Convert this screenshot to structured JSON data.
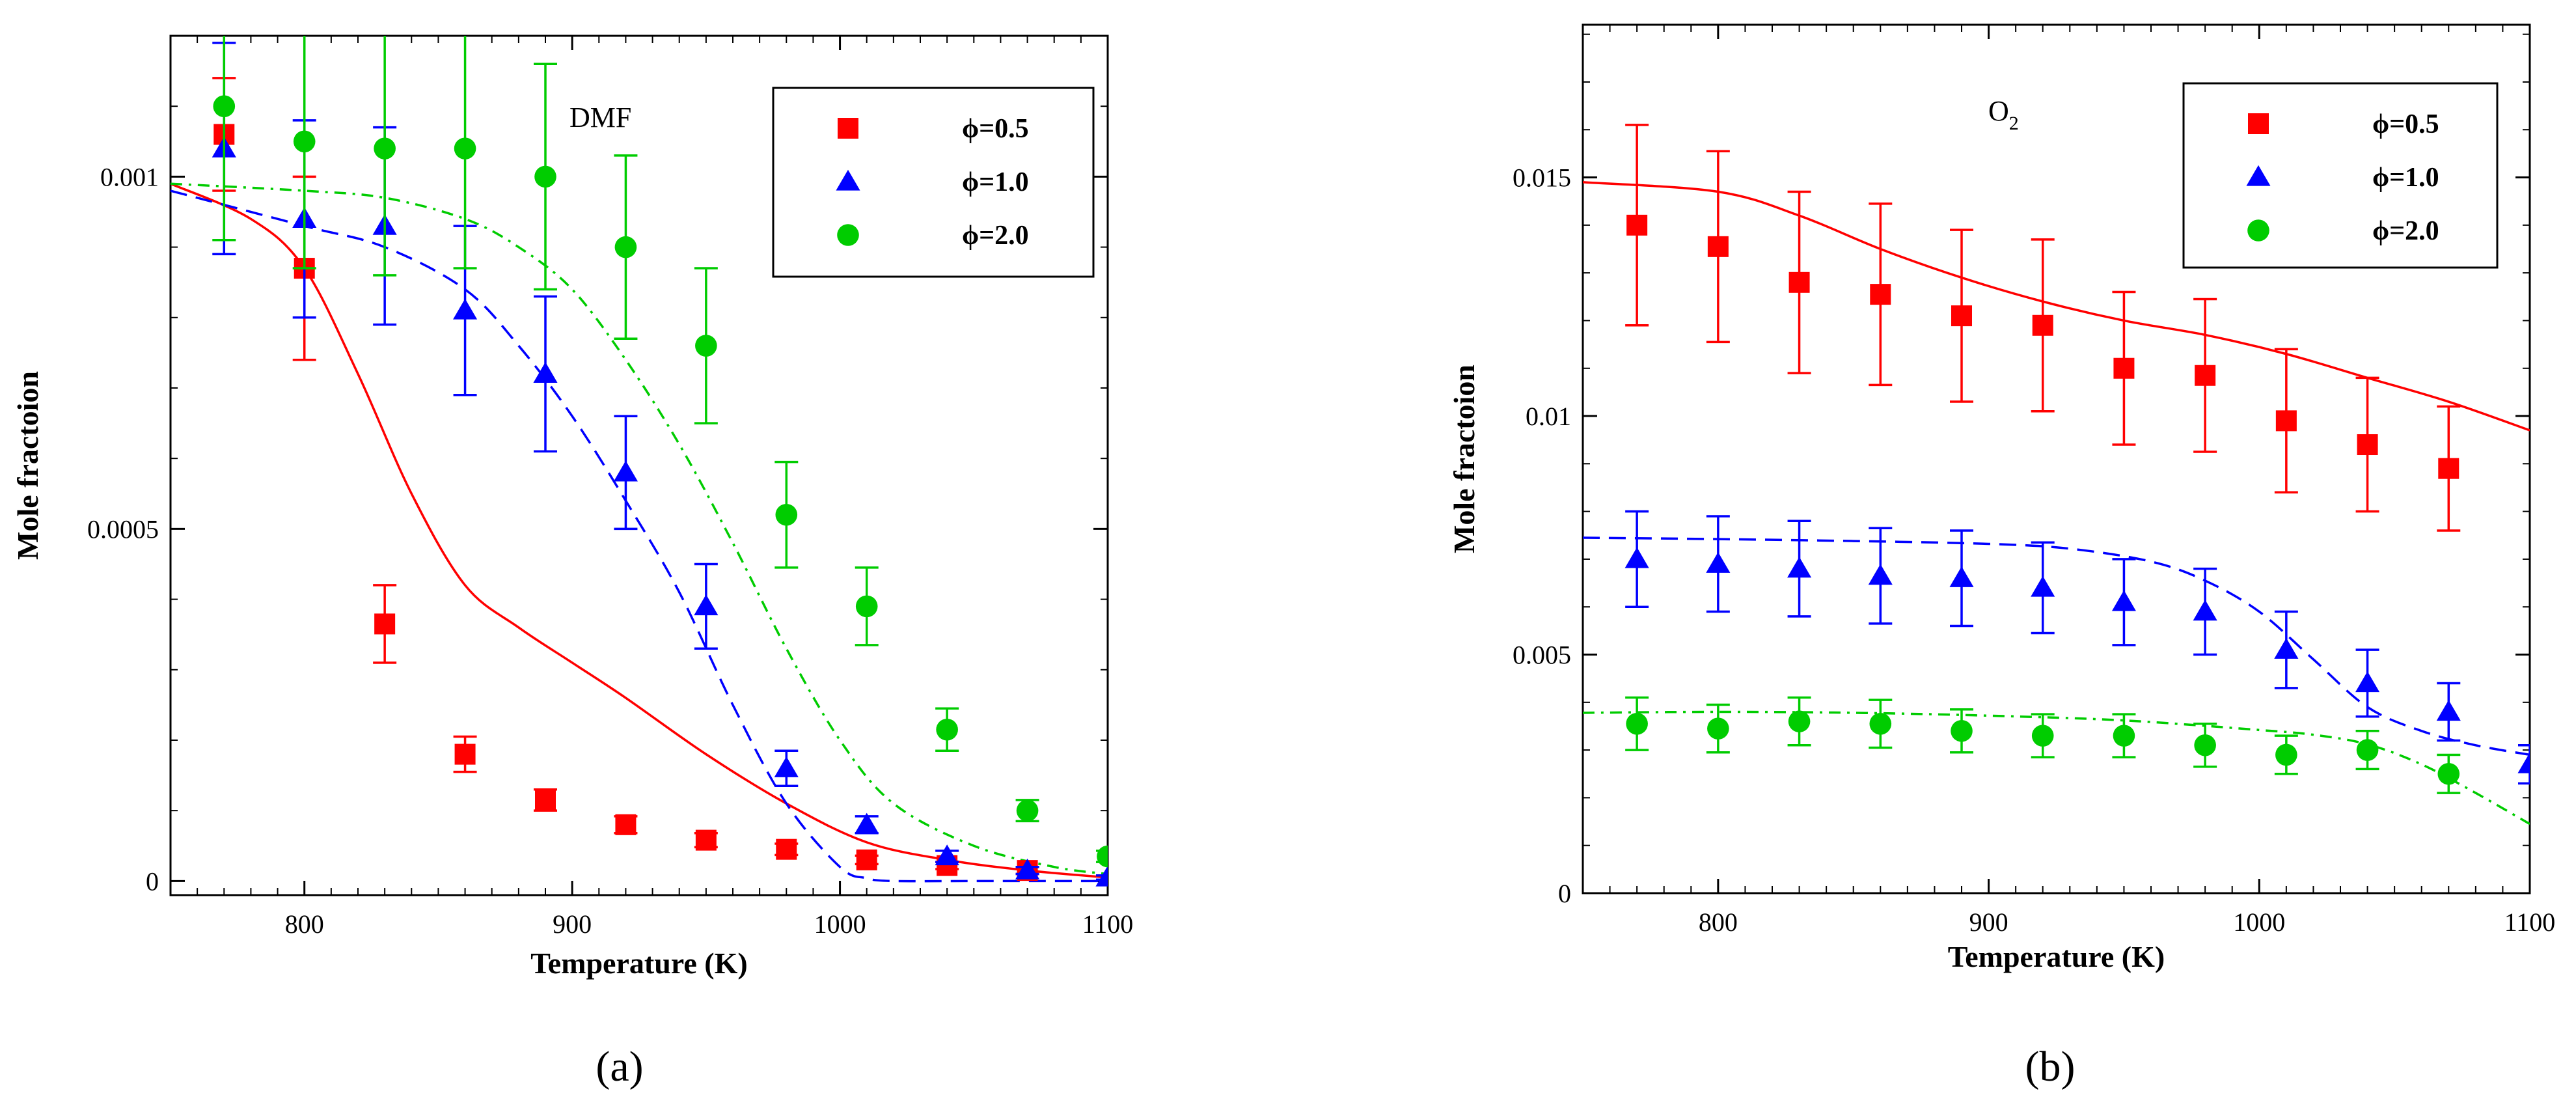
{
  "chart_data": [
    {
      "type": "scatter",
      "panel_label": "(a)",
      "annotation": "DMF",
      "xlabel": "Temperature (K)",
      "ylabel": "Mole fractoion",
      "xlim": [
        750,
        1100
      ],
      "ylim": [
        -2e-05,
        0.0012
      ],
      "xticks": [
        800,
        900,
        1000,
        1100
      ],
      "xtick_labels": [
        "800",
        "900",
        "1000",
        "1100"
      ],
      "yticks": [
        0,
        0.0005,
        0.001
      ],
      "ytick_labels": [
        "0",
        "0.0005",
        "0.001"
      ],
      "grid": false,
      "legend_position": "top-right",
      "series": [
        {
          "name": "ϕ=0.5",
          "color": "#ff0000",
          "marker": "square",
          "line_style": "solid",
          "x": [
            770,
            800,
            830,
            860,
            890,
            920,
            950,
            980,
            1010,
            1040,
            1070
          ],
          "y": [
            0.00106,
            0.00087,
            0.000365,
            0.00018,
            0.000115,
            8e-05,
            5.8e-05,
            4.5e-05,
            3e-05,
            2.2e-05,
            1.5e-05
          ],
          "err": [
            8e-05,
            0.00013,
            5.5e-05,
            2.5e-05,
            1.5e-05,
            1.2e-05,
            1e-05,
            8e-06,
            6e-06,
            5e-06,
            5e-06
          ],
          "model_x": [
            750,
            780,
            800,
            820,
            840,
            860,
            880,
            900,
            920,
            950,
            980,
            1010,
            1040,
            1070,
            1100
          ],
          "model_y": [
            0.00099,
            0.00094,
            0.00087,
            0.00072,
            0.00055,
            0.00042,
            0.00036,
            0.00031,
            0.00026,
            0.00018,
            0.00011,
            5.5e-05,
            3e-05,
            1.5e-05,
            5e-06
          ]
        },
        {
          "name": "ϕ=1.0",
          "color": "#0000ff",
          "marker": "triangle",
          "line_style": "dashed",
          "x": [
            770,
            800,
            830,
            860,
            890,
            920,
            950,
            980,
            1010,
            1040,
            1070,
            1100
          ],
          "y": [
            0.00104,
            0.00094,
            0.00093,
            0.00081,
            0.00072,
            0.00058,
            0.00039,
            0.00016,
            8e-05,
            3.5e-05,
            1.5e-05,
            5e-06
          ],
          "err": [
            0.00015,
            0.00014,
            0.00014,
            0.00012,
            0.00011,
            8e-05,
            6e-05,
            2.5e-05,
            1.2e-05,
            8e-06,
            5e-06,
            3e-06
          ],
          "model_x": [
            750,
            800,
            830,
            860,
            880,
            900,
            920,
            940,
            960,
            980,
            1000,
            1010,
            1020,
            1050,
            1100
          ],
          "model_y": [
            0.00098,
            0.00093,
            0.0009,
            0.00084,
            0.00076,
            0.00066,
            0.00054,
            0.00041,
            0.00025,
            0.00011,
            2e-05,
            4e-06,
            0.0,
            0.0,
            0.0
          ]
        },
        {
          "name": "ϕ=2.0",
          "color": "#00cc00",
          "marker": "circle",
          "line_style": "dash-dot",
          "x": [
            770,
            800,
            830,
            860,
            890,
            920,
            950,
            980,
            1010,
            1040,
            1070,
            1100
          ],
          "y": [
            0.0011,
            0.00105,
            0.00104,
            0.00104,
            0.001,
            0.0009,
            0.00076,
            0.00052,
            0.00039,
            0.000215,
            0.0001,
            3.5e-05
          ],
          "err": [
            0.00019,
            0.00018,
            0.00018,
            0.00017,
            0.00016,
            0.00013,
            0.00011,
            7.5e-05,
            5.5e-05,
            3e-05,
            1.5e-05,
            8e-06
          ],
          "model_x": [
            750,
            800,
            830,
            860,
            880,
            900,
            920,
            940,
            960,
            980,
            1000,
            1020,
            1050,
            1080,
            1100
          ],
          "model_y": [
            0.00099,
            0.00098,
            0.00097,
            0.00094,
            0.0009,
            0.00084,
            0.00074,
            0.00062,
            0.00048,
            0.00033,
            0.0002,
            0.00011,
            5e-05,
            2e-05,
            1e-05
          ]
        }
      ]
    },
    {
      "type": "scatter",
      "panel_label": "(b)",
      "annotation": "O",
      "annotation_subscript": "2",
      "xlabel": "Temperature (K)",
      "ylabel": "Mole fractoion",
      "xlim": [
        750,
        1100
      ],
      "ylim": [
        0,
        0.0182
      ],
      "xticks": [
        800,
        900,
        1000,
        1100
      ],
      "xtick_labels": [
        "800",
        "900",
        "1000",
        "1100"
      ],
      "yticks": [
        0,
        0.005,
        0.01,
        0.015
      ],
      "ytick_labels": [
        "0",
        "0.005",
        "0.01",
        "0.015"
      ],
      "grid": false,
      "legend_position": "top-right",
      "series": [
        {
          "name": "ϕ=0.5",
          "color": "#ff0000",
          "marker": "square",
          "line_style": "solid",
          "x": [
            770,
            800,
            830,
            860,
            890,
            920,
            950,
            980,
            1010,
            1040,
            1070
          ],
          "y": [
            0.014,
            0.01355,
            0.0128,
            0.01255,
            0.0121,
            0.0119,
            0.011,
            0.01085,
            0.0099,
            0.0094,
            0.0089
          ],
          "err": [
            0.0021,
            0.002,
            0.0019,
            0.0019,
            0.0018,
            0.0018,
            0.0016,
            0.0016,
            0.0015,
            0.0014,
            0.0013
          ],
          "model_x": [
            750,
            800,
            830,
            860,
            890,
            920,
            950,
            980,
            1010,
            1040,
            1070,
            1100
          ],
          "model_y": [
            0.0149,
            0.0147,
            0.0142,
            0.0135,
            0.0129,
            0.0124,
            0.012,
            0.0117,
            0.0113,
            0.0108,
            0.0103,
            0.0097
          ]
        },
        {
          "name": "ϕ=1.0",
          "color": "#0000ff",
          "marker": "triangle",
          "line_style": "dashed",
          "x": [
            770,
            800,
            830,
            860,
            890,
            920,
            950,
            980,
            1010,
            1040,
            1070,
            1100
          ],
          "y": [
            0.007,
            0.0069,
            0.0068,
            0.00665,
            0.0066,
            0.0064,
            0.0061,
            0.0059,
            0.0051,
            0.0044,
            0.0038,
            0.0027
          ],
          "err": [
            0.001,
            0.001,
            0.001,
            0.001,
            0.001,
            0.00095,
            0.0009,
            0.0009,
            0.0008,
            0.0007,
            0.0006,
            0.0004
          ],
          "model_x": [
            750,
            800,
            850,
            900,
            930,
            960,
            980,
            1000,
            1020,
            1040,
            1060,
            1080,
            1100
          ],
          "model_y": [
            0.00745,
            0.00742,
            0.00738,
            0.00732,
            0.00722,
            0.00695,
            0.00655,
            0.0059,
            0.0049,
            0.0039,
            0.0034,
            0.0031,
            0.0029
          ]
        },
        {
          "name": "ϕ=2.0",
          "color": "#00cc00",
          "marker": "circle",
          "line_style": "dash-dot",
          "x": [
            770,
            800,
            830,
            860,
            890,
            920,
            950,
            980,
            1010,
            1040,
            1070
          ],
          "y": [
            0.00355,
            0.00345,
            0.0036,
            0.00355,
            0.0034,
            0.0033,
            0.0033,
            0.0031,
            0.0029,
            0.003,
            0.0025
          ],
          "err": [
            0.00055,
            0.0005,
            0.0005,
            0.0005,
            0.00045,
            0.00045,
            0.00045,
            0.00045,
            0.0004,
            0.0004,
            0.0004
          ],
          "model_x": [
            750,
            800,
            850,
            900,
            950,
            1000,
            1020,
            1040,
            1060,
            1080,
            1100
          ],
          "model_y": [
            0.00378,
            0.0038,
            0.00378,
            0.00372,
            0.00362,
            0.00342,
            0.00332,
            0.00312,
            0.0027,
            0.0021,
            0.00145
          ]
        }
      ]
    }
  ]
}
